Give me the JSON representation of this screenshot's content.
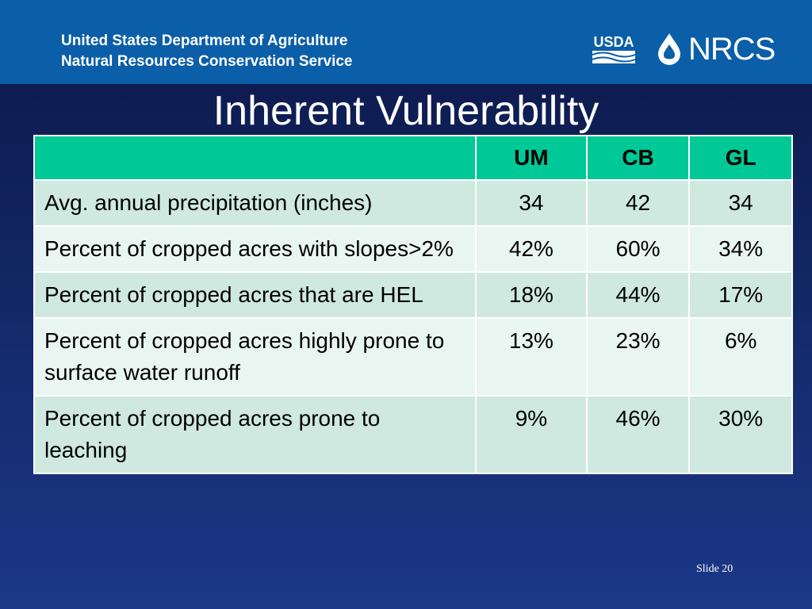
{
  "header": {
    "agency_line1": "United States Department of Agriculture",
    "agency_line2": "Natural Resources Conservation Service",
    "logo_usda": "USDA",
    "logo_nrcs": "NRCS",
    "bar_color": "#0b5ea8"
  },
  "slide": {
    "title": "Inherent Vulnerability",
    "number_label": "Slide 20"
  },
  "table": {
    "header_color": "#00c896",
    "columns": [
      "",
      "UM",
      "CB",
      "GL"
    ],
    "rows": [
      {
        "label": "Avg. annual precipitation (inches)",
        "um": "34",
        "cb": "42",
        "gl": "34"
      },
      {
        "label": "Percent of cropped acres with slopes>2%",
        "um": "42%",
        "cb": "60%",
        "gl": "34%"
      },
      {
        "label": "Percent of cropped acres that are HEL",
        "um": "18%",
        "cb": "44%",
        "gl": "17%"
      },
      {
        "label": "Percent of cropped acres highly prone to surface water runoff",
        "um": "13%",
        "cb": "23%",
        "gl": "6%"
      },
      {
        "label": "Percent of cropped acres prone to leaching",
        "um": "9%",
        "cb": "46%",
        "gl": "30%"
      }
    ]
  }
}
